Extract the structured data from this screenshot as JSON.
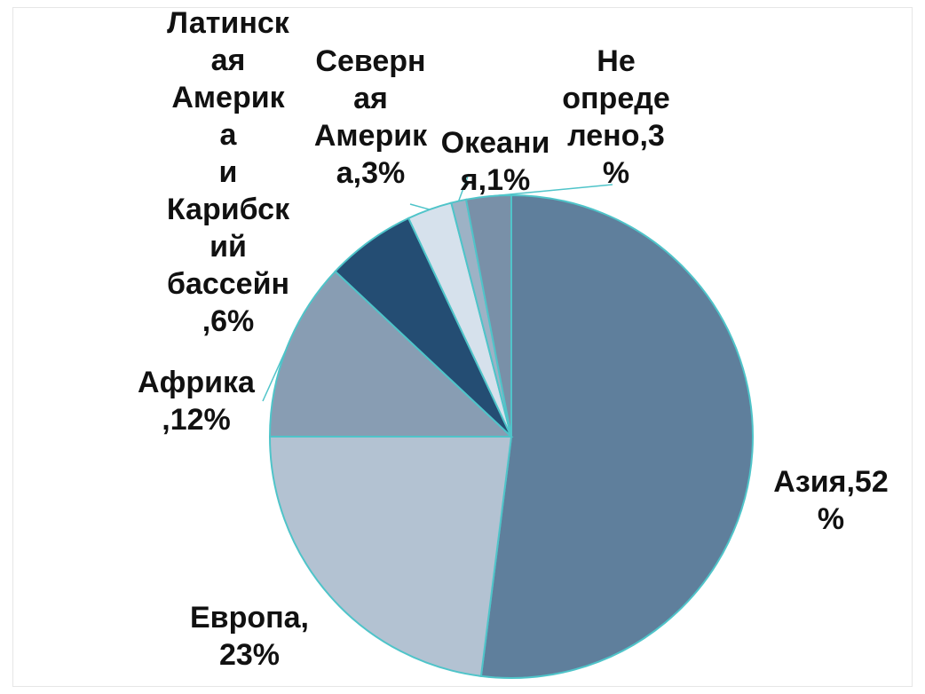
{
  "chart_data": {
    "type": "pie",
    "slices": [
      {
        "label": "Азия",
        "value": 52,
        "text": "Азия,52\n%",
        "color": "#5f7f9c"
      },
      {
        "label": "Европа",
        "value": 23,
        "text": "Европа,\n23%",
        "color": "#b3c2d2"
      },
      {
        "label": "Африка",
        "value": 12,
        "text": "Африка\n,12%",
        "color": "#889db3"
      },
      {
        "label": "Латинская Америка и Карибский бассейн",
        "value": 6,
        "text": "Латинск\nая\nАмерик\nа\nи\nКарибск\nий\nбассейн\n,6%",
        "color": "#244d73"
      },
      {
        "label": "Северная Америка",
        "value": 3,
        "text": "Северн\nая\nАмерик\nа,3%",
        "color": "#d6e1ec"
      },
      {
        "label": "Океания",
        "value": 1,
        "text": "Океани\nя,1%",
        "color": "#9db2c5"
      },
      {
        "label": "Не определено",
        "value": 3,
        "text": "Не\nопреде\nлено,3\n%",
        "color": "#7990a8"
      }
    ]
  }
}
